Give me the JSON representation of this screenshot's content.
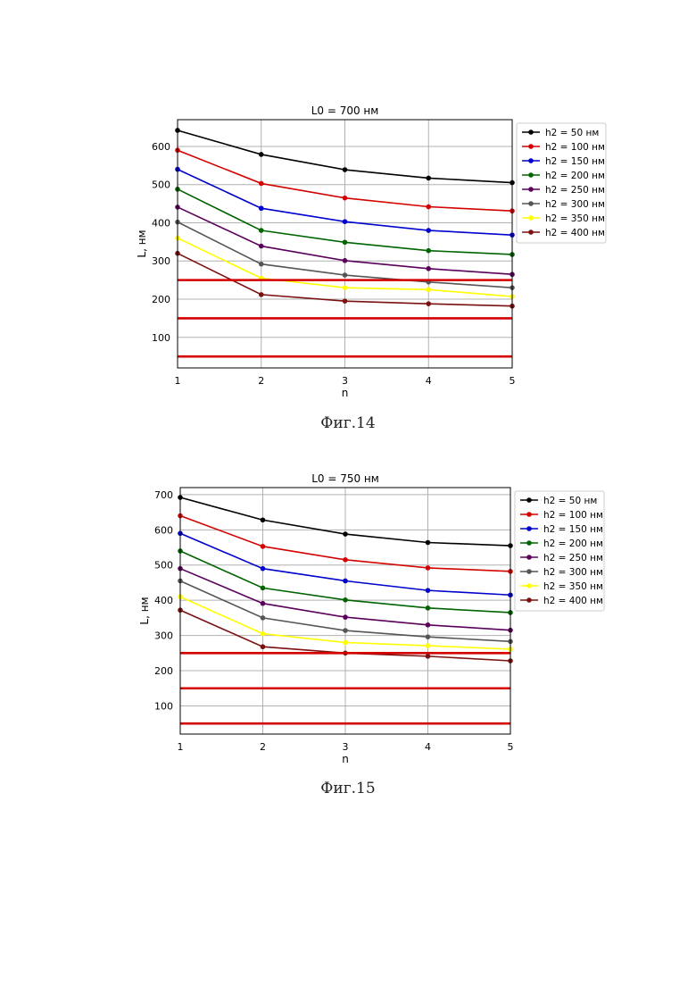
{
  "chart_data": [
    {
      "type": "line",
      "title": "L0 = 700 нм",
      "xlabel": "n",
      "ylabel": "L, нм",
      "x": [
        1,
        2,
        3,
        4,
        5
      ],
      "xlim": [
        1,
        5
      ],
      "ylim": [
        20,
        670
      ],
      "yticks": [
        100,
        200,
        300,
        400,
        500,
        600
      ],
      "grid": true,
      "legend_position": "outside-right-top",
      "series": [
        {
          "name": "h2 = 50 нм",
          "color": "#000000",
          "values": [
            642,
            579,
            539,
            517,
            505
          ]
        },
        {
          "name": "h2 = 100 нм",
          "color": "#d40000",
          "values": [
            590,
            503,
            465,
            442,
            431
          ]
        },
        {
          "name": "h2 = 150 нм",
          "color": "#0000cc",
          "values": [
            540,
            438,
            403,
            380,
            368
          ]
        },
        {
          "name": "h2 = 200 нм",
          "color": "#006400",
          "values": [
            488,
            380,
            349,
            327,
            317
          ]
        },
        {
          "name": "h2 = 250 нм",
          "color": "#5a005a",
          "values": [
            441,
            339,
            301,
            280,
            265
          ]
        },
        {
          "name": "h2 = 300 нм",
          "color": "#555555",
          "values": [
            402,
            292,
            263,
            245,
            230
          ]
        },
        {
          "name": "h2 = 350 нм",
          "color": "#ffff00",
          "values": [
            360,
            255,
            230,
            225,
            207
          ]
        },
        {
          "name": "h2 = 400 нм",
          "color": "#7b1010",
          "values": [
            320,
            212,
            195,
            188,
            182
          ]
        }
      ],
      "reference_lines": {
        "color": "#d40000",
        "values": [
          250,
          150,
          50
        ]
      }
    },
    {
      "type": "line",
      "title": "L0 = 750 нм",
      "xlabel": "n",
      "ylabel": "L, нм",
      "x": [
        1,
        2,
        3,
        4,
        5
      ],
      "xlim": [
        1,
        5
      ],
      "ylim": [
        20,
        720
      ],
      "yticks": [
        100,
        200,
        300,
        400,
        500,
        600,
        700
      ],
      "grid": true,
      "legend_position": "outside-right-top",
      "series": [
        {
          "name": "h2 = 50 нм",
          "color": "#000000",
          "values": [
            692,
            628,
            588,
            564,
            555
          ]
        },
        {
          "name": "h2 = 100 нм",
          "color": "#d40000",
          "values": [
            640,
            553,
            515,
            492,
            482
          ]
        },
        {
          "name": "h2 = 150 нм",
          "color": "#0000cc",
          "values": [
            590,
            490,
            455,
            428,
            415
          ]
        },
        {
          "name": "h2 = 200 нм",
          "color": "#006400",
          "values": [
            540,
            435,
            401,
            378,
            365
          ]
        },
        {
          "name": "h2 = 250 нм",
          "color": "#5a005a",
          "values": [
            490,
            391,
            352,
            330,
            315
          ]
        },
        {
          "name": "h2 = 300 нм",
          "color": "#555555",
          "values": [
            455,
            350,
            314,
            296,
            283
          ]
        },
        {
          "name": "h2 = 350 нм",
          "color": "#ffff00",
          "values": [
            410,
            305,
            280,
            271,
            261
          ]
        },
        {
          "name": "h2 = 400 нм",
          "color": "#7b1010",
          "values": [
            372,
            268,
            250,
            241,
            228
          ]
        }
      ],
      "reference_lines": {
        "color": "#d40000",
        "values": [
          250,
          150,
          50
        ]
      }
    }
  ],
  "captions": [
    "Фиг.14",
    "Фиг.15"
  ]
}
